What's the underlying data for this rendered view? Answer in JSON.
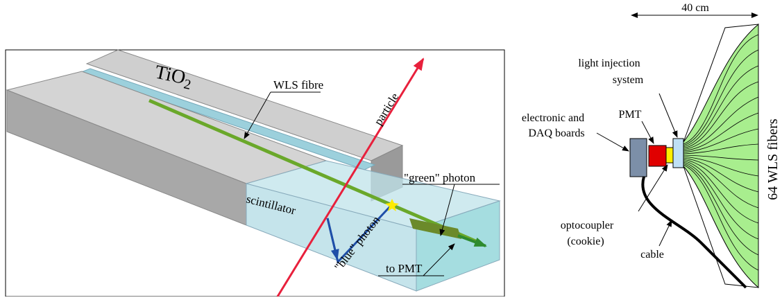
{
  "left_panel": {
    "tio2": {
      "text": "TiO",
      "subscript": "2"
    },
    "wls_fibre": "WLS fibre",
    "particle": "particle",
    "green_photon": "\"green\" photon",
    "scintillator": "scintillator",
    "blue_photon": "\"blue\" photon",
    "to_pmt": "to PMT"
  },
  "right_panel": {
    "width": "40 cm",
    "light_injection": [
      "light injection",
      "system"
    ],
    "electronics": [
      "electronic and",
      "DAQ boards"
    ],
    "pmt": "PMT",
    "fibers": "64 WLS fibers",
    "optocoupler": [
      "optocoupler",
      "(cookie)"
    ],
    "cable": "cable"
  }
}
